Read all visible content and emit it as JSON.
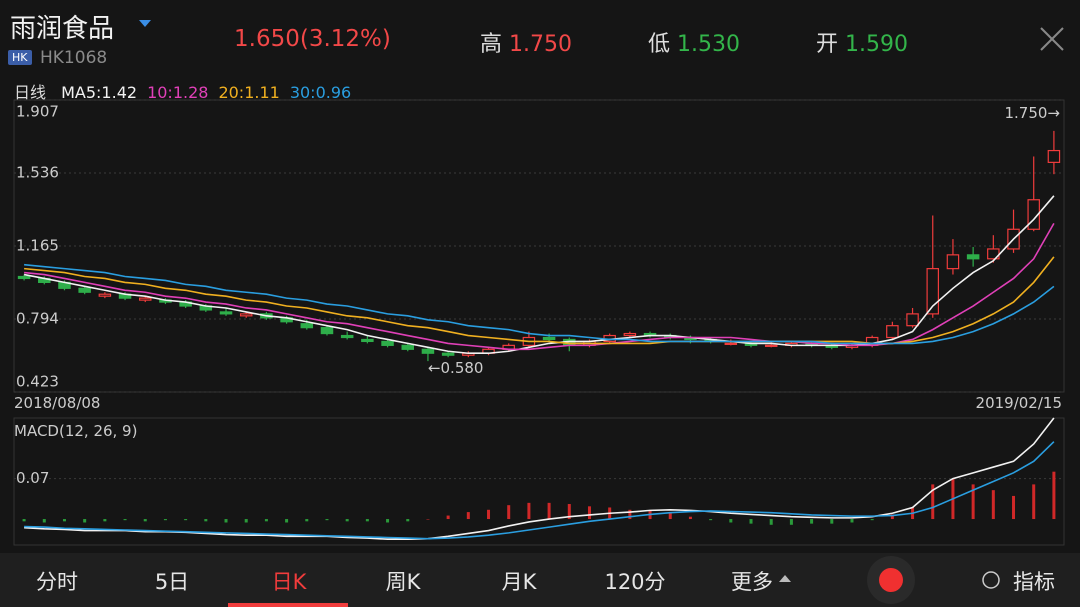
{
  "header": {
    "name": "雨润食品",
    "badge": "HK",
    "code": "HK1068",
    "price": "1.650",
    "change": "(3.12%)",
    "high_label": "高",
    "high": "1.750",
    "low_label": "低",
    "low": "1.530",
    "open_label": "开",
    "open": "1.590"
  },
  "chart_data": [
    {
      "type": "candlestick",
      "period_label": "日线",
      "ylim": [
        0.423,
        1.907
      ],
      "yticks": [
        0.423,
        0.794,
        1.165,
        1.536,
        1.907
      ],
      "x_start": "2018/08/08",
      "x_end": "2019/02/15",
      "up_color": "#f03c3c",
      "down_color": "#2eae4a",
      "high_annotation": "1.750→",
      "low_annotation": "←0.580",
      "candles": [
        [
          1.01,
          1.02,
          0.99,
          1.0
        ],
        [
          1.0,
          1.01,
          0.97,
          0.98
        ],
        [
          0.98,
          0.99,
          0.94,
          0.95
        ],
        [
          0.95,
          0.96,
          0.92,
          0.93
        ],
        [
          0.91,
          0.93,
          0.9,
          0.92
        ],
        [
          0.92,
          0.93,
          0.89,
          0.9
        ],
        [
          0.89,
          0.91,
          0.88,
          0.9
        ],
        [
          0.89,
          0.9,
          0.87,
          0.88
        ],
        [
          0.88,
          0.89,
          0.85,
          0.86
        ],
        [
          0.86,
          0.87,
          0.83,
          0.84
        ],
        [
          0.83,
          0.85,
          0.81,
          0.82
        ],
        [
          0.81,
          0.83,
          0.8,
          0.82
        ],
        [
          0.82,
          0.83,
          0.79,
          0.8
        ],
        [
          0.8,
          0.81,
          0.77,
          0.78
        ],
        [
          0.77,
          0.79,
          0.74,
          0.75
        ],
        [
          0.75,
          0.76,
          0.71,
          0.72
        ],
        [
          0.71,
          0.73,
          0.69,
          0.7
        ],
        [
          0.69,
          0.71,
          0.67,
          0.68
        ],
        [
          0.68,
          0.69,
          0.65,
          0.66
        ],
        [
          0.66,
          0.67,
          0.63,
          0.64
        ],
        [
          0.64,
          0.65,
          0.58,
          0.62
        ],
        [
          0.62,
          0.63,
          0.6,
          0.61
        ],
        [
          0.61,
          0.63,
          0.6,
          0.62
        ],
        [
          0.62,
          0.65,
          0.61,
          0.64
        ],
        [
          0.64,
          0.67,
          0.63,
          0.66
        ],
        [
          0.66,
          0.73,
          0.65,
          0.7
        ],
        [
          0.7,
          0.72,
          0.68,
          0.69
        ],
        [
          0.69,
          0.7,
          0.63,
          0.66
        ],
        [
          0.66,
          0.69,
          0.65,
          0.68
        ],
        [
          0.68,
          0.72,
          0.67,
          0.71
        ],
        [
          0.71,
          0.73,
          0.7,
          0.72
        ],
        [
          0.72,
          0.73,
          0.7,
          0.71
        ],
        [
          0.71,
          0.72,
          0.69,
          0.7
        ],
        [
          0.7,
          0.71,
          0.67,
          0.69
        ],
        [
          0.69,
          0.7,
          0.67,
          0.68
        ],
        [
          0.67,
          0.69,
          0.66,
          0.67
        ],
        [
          0.67,
          0.68,
          0.65,
          0.66
        ],
        [
          0.66,
          0.68,
          0.65,
          0.66
        ],
        [
          0.66,
          0.68,
          0.65,
          0.67
        ],
        [
          0.67,
          0.68,
          0.65,
          0.66
        ],
        [
          0.66,
          0.67,
          0.64,
          0.65
        ],
        [
          0.65,
          0.67,
          0.64,
          0.66
        ],
        [
          0.66,
          0.71,
          0.65,
          0.7
        ],
        [
          0.7,
          0.78,
          0.69,
          0.76
        ],
        [
          0.76,
          0.85,
          0.75,
          0.82
        ],
        [
          0.82,
          1.32,
          0.8,
          1.05
        ],
        [
          1.05,
          1.2,
          1.02,
          1.12
        ],
        [
          1.12,
          1.16,
          1.06,
          1.1
        ],
        [
          1.1,
          1.22,
          1.08,
          1.15
        ],
        [
          1.15,
          1.35,
          1.13,
          1.25
        ],
        [
          1.25,
          1.62,
          1.24,
          1.4
        ],
        [
          1.59,
          1.75,
          1.53,
          1.65
        ]
      ],
      "series": [
        {
          "name": "MA5:1.42",
          "color": "#f2f2f2",
          "values": [
            1.02,
            1.0,
            0.98,
            0.96,
            0.94,
            0.92,
            0.91,
            0.89,
            0.88,
            0.86,
            0.85,
            0.83,
            0.81,
            0.8,
            0.78,
            0.76,
            0.74,
            0.71,
            0.69,
            0.67,
            0.65,
            0.63,
            0.62,
            0.62,
            0.63,
            0.65,
            0.67,
            0.68,
            0.68,
            0.69,
            0.7,
            0.71,
            0.71,
            0.7,
            0.69,
            0.68,
            0.67,
            0.67,
            0.66,
            0.66,
            0.66,
            0.66,
            0.67,
            0.69,
            0.73,
            0.86,
            0.95,
            1.03,
            1.09,
            1.2,
            1.3,
            1.42
          ]
        },
        {
          "name": "10:1.28",
          "color": "#e040b8",
          "values": [
            1.03,
            1.02,
            1.0,
            0.98,
            0.96,
            0.94,
            0.93,
            0.91,
            0.9,
            0.88,
            0.87,
            0.85,
            0.84,
            0.82,
            0.8,
            0.78,
            0.77,
            0.75,
            0.73,
            0.71,
            0.69,
            0.67,
            0.66,
            0.65,
            0.64,
            0.64,
            0.65,
            0.66,
            0.66,
            0.67,
            0.68,
            0.69,
            0.7,
            0.7,
            0.7,
            0.7,
            0.69,
            0.68,
            0.68,
            0.67,
            0.67,
            0.66,
            0.66,
            0.67,
            0.69,
            0.74,
            0.8,
            0.86,
            0.93,
            1.0,
            1.1,
            1.28
          ]
        },
        {
          "name": "20:1.11",
          "color": "#f0b020",
          "values": [
            1.05,
            1.04,
            1.03,
            1.01,
            1.0,
            0.98,
            0.97,
            0.95,
            0.94,
            0.92,
            0.91,
            0.89,
            0.88,
            0.86,
            0.85,
            0.83,
            0.81,
            0.8,
            0.78,
            0.76,
            0.75,
            0.73,
            0.71,
            0.7,
            0.69,
            0.68,
            0.68,
            0.67,
            0.67,
            0.67,
            0.67,
            0.67,
            0.68,
            0.68,
            0.68,
            0.68,
            0.68,
            0.68,
            0.68,
            0.68,
            0.68,
            0.68,
            0.67,
            0.67,
            0.68,
            0.7,
            0.73,
            0.77,
            0.82,
            0.88,
            0.98,
            1.11
          ]
        },
        {
          "name": "30:0.96",
          "color": "#2a9ee0",
          "values": [
            1.07,
            1.06,
            1.05,
            1.04,
            1.03,
            1.01,
            1.0,
            0.99,
            0.97,
            0.96,
            0.94,
            0.93,
            0.92,
            0.9,
            0.89,
            0.87,
            0.86,
            0.84,
            0.82,
            0.81,
            0.79,
            0.78,
            0.76,
            0.75,
            0.74,
            0.72,
            0.71,
            0.71,
            0.7,
            0.69,
            0.69,
            0.68,
            0.68,
            0.68,
            0.68,
            0.68,
            0.68,
            0.68,
            0.68,
            0.68,
            0.67,
            0.67,
            0.67,
            0.67,
            0.67,
            0.68,
            0.7,
            0.73,
            0.77,
            0.82,
            0.88,
            0.96
          ]
        }
      ]
    },
    {
      "type": "macd",
      "title": "MACD(12, 26, 9)",
      "ylim": [
        -0.045,
        0.175
      ],
      "yticks": [
        0.07
      ],
      "up_color": "#d02828",
      "down_color": "#2a9a3a",
      "histogram": [
        -0.004,
        -0.006,
        -0.004,
        -0.006,
        -0.004,
        -0.002,
        -0.004,
        -0.002,
        -0.002,
        -0.004,
        -0.006,
        -0.006,
        -0.004,
        -0.006,
        -0.004,
        -0.002,
        -0.004,
        -0.004,
        -0.006,
        -0.004,
        0.0,
        0.006,
        0.012,
        0.016,
        0.024,
        0.028,
        0.028,
        0.026,
        0.022,
        0.02,
        0.016,
        0.014,
        0.01,
        0.004,
        -0.002,
        -0.006,
        -0.008,
        -0.01,
        -0.01,
        -0.008,
        -0.008,
        -0.006,
        -0.002,
        0.008,
        0.02,
        0.06,
        0.07,
        0.06,
        0.05,
        0.04,
        0.06,
        0.082
      ],
      "series": [
        {
          "color": "#f2f2f2",
          "values": [
            -0.015,
            -0.017,
            -0.018,
            -0.02,
            -0.02,
            -0.02,
            -0.022,
            -0.022,
            -0.023,
            -0.025,
            -0.027,
            -0.028,
            -0.028,
            -0.03,
            -0.03,
            -0.03,
            -0.032,
            -0.033,
            -0.035,
            -0.035,
            -0.034,
            -0.03,
            -0.025,
            -0.02,
            -0.012,
            -0.005,
            0.0,
            0.004,
            0.007,
            0.01,
            0.012,
            0.015,
            0.016,
            0.015,
            0.013,
            0.01,
            0.008,
            0.006,
            0.004,
            0.003,
            0.002,
            0.002,
            0.004,
            0.01,
            0.02,
            0.05,
            0.07,
            0.08,
            0.09,
            0.1,
            0.13,
            0.175
          ]
        },
        {
          "color": "#2a9ee0",
          "values": [
            -0.013,
            -0.014,
            -0.016,
            -0.017,
            -0.018,
            -0.019,
            -0.02,
            -0.021,
            -0.022,
            -0.023,
            -0.024,
            -0.025,
            -0.026,
            -0.027,
            -0.028,
            -0.029,
            -0.03,
            -0.031,
            -0.032,
            -0.033,
            -0.034,
            -0.033,
            -0.031,
            -0.028,
            -0.024,
            -0.019,
            -0.014,
            -0.009,
            -0.004,
            0.0,
            0.004,
            0.008,
            0.011,
            0.013,
            0.014,
            0.013,
            0.012,
            0.011,
            0.009,
            0.007,
            0.006,
            0.005,
            0.005,
            0.006,
            0.01,
            0.02,
            0.035,
            0.05,
            0.065,
            0.08,
            0.1,
            0.134
          ]
        }
      ]
    }
  ],
  "tabs": [
    "分时",
    "5日",
    "日K",
    "周K",
    "月K",
    "120分",
    "更多",
    "指标"
  ]
}
